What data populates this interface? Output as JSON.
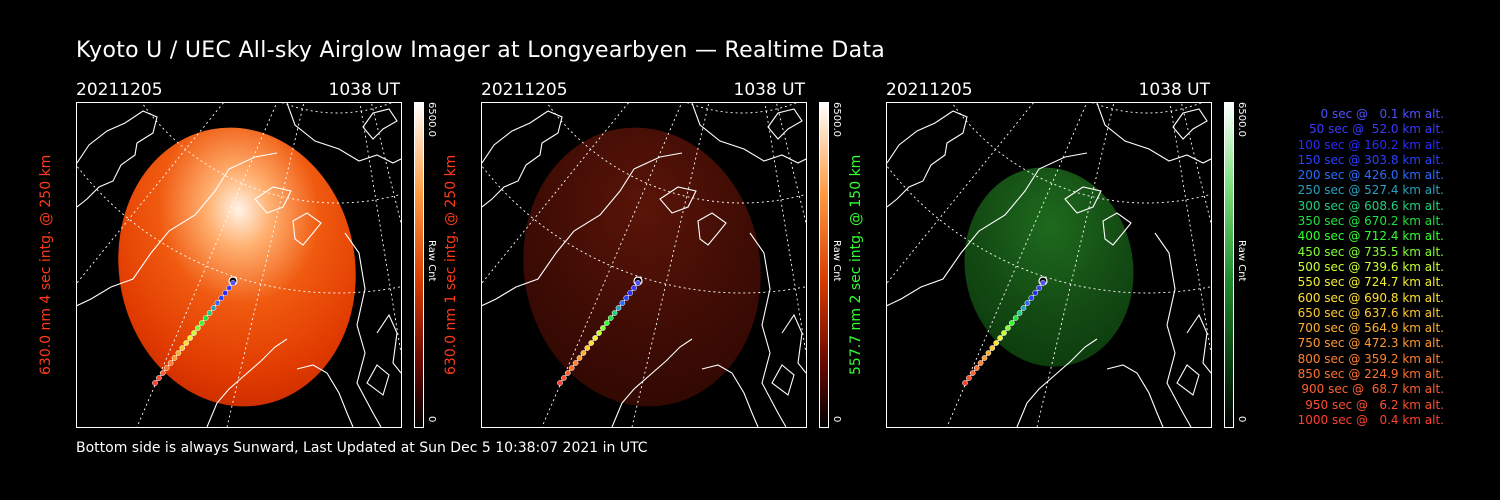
{
  "title": "Kyoto U / UEC All-sky Airglow Imager at Longyearbyen — Realtime Data",
  "footer": "Bottom side is always Sunward, Last Updated at Sun Dec  5 10:38:07 2021 in UTC",
  "panels": [
    {
      "date": "20211205",
      "time": "1038 UT",
      "ylabel": "630.0 nm 4 sec intg. @ 250 km",
      "label_color": "#ff3a1a",
      "cbar_max": "6500.0",
      "cbar_unit": "Raw Cnt",
      "cbar_min": "0",
      "colormap": "red",
      "brightness": 0.85
    },
    {
      "date": "20211205",
      "time": "1038 UT",
      "ylabel": "630.0 nm 1 sec intg. @ 250 km",
      "label_color": "#ff3a1a",
      "cbar_max": "6500.0",
      "cbar_unit": "Raw Cnt",
      "cbar_min": "0",
      "colormap": "red",
      "brightness": 0.22
    },
    {
      "date": "20211205",
      "time": "1038 UT",
      "ylabel": "557.7 nm 2 sec intg. @ 150 km",
      "label_color": "#33ff33",
      "cbar_max": "6500.0",
      "cbar_unit": "Raw Cnt",
      "cbar_min": "0",
      "colormap": "green",
      "brightness": 0.2
    }
  ],
  "legend": [
    {
      "text": "0 sec @   0.1 km alt.",
      "color": "#5050ff"
    },
    {
      "text": "50 sec @  52.0 km alt.",
      "color": "#3a3aff"
    },
    {
      "text": "100 sec @ 160.2 km alt.",
      "color": "#2a2aff"
    },
    {
      "text": "150 sec @ 303.8 km alt.",
      "color": "#2a40ff"
    },
    {
      "text": "200 sec @ 426.0 km alt.",
      "color": "#2a6cff"
    },
    {
      "text": "250 sec @ 527.4 km alt.",
      "color": "#2aa0c0"
    },
    {
      "text": "300 sec @ 608.6 km alt.",
      "color": "#20d080"
    },
    {
      "text": "350 sec @ 670.2 km alt.",
      "color": "#20e040"
    },
    {
      "text": "400 sec @ 712.4 km alt.",
      "color": "#30ff30"
    },
    {
      "text": "450 sec @ 735.5 km alt.",
      "color": "#80ff30"
    },
    {
      "text": "500 sec @ 739.6 km alt.",
      "color": "#c8ff30"
    },
    {
      "text": "550 sec @ 724.7 km alt.",
      "color": "#f0f030"
    },
    {
      "text": "600 sec @ 690.8 km alt.",
      "color": "#ffe030"
    },
    {
      "text": "650 sec @ 637.6 km alt.",
      "color": "#ffc830"
    },
    {
      "text": "700 sec @ 564.9 km alt.",
      "color": "#ffb030"
    },
    {
      "text": "750 sec @ 472.3 km alt.",
      "color": "#ff9830"
    },
    {
      "text": "800 sec @ 359.2 km alt.",
      "color": "#ff8030"
    },
    {
      "text": "850 sec @ 224.9 km alt.",
      "color": "#ff7030"
    },
    {
      "text": "900 sec @  68.7 km alt.",
      "color": "#ff6030"
    },
    {
      "text": "950 sec @   6.2 km alt.",
      "color": "#ff5030"
    },
    {
      "text": "1000 sec @   0.4 km alt.",
      "color": "#ff4030"
    }
  ]
}
